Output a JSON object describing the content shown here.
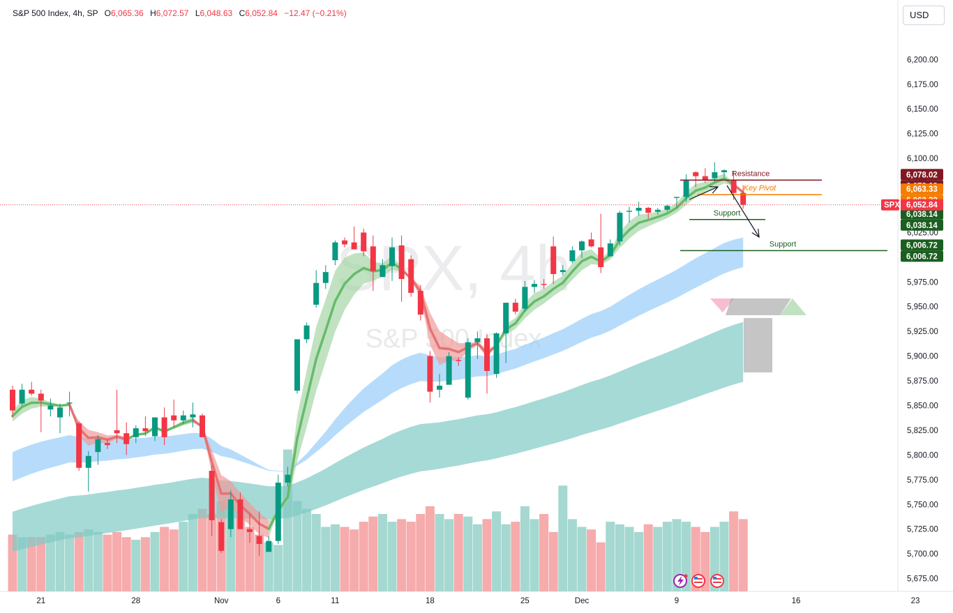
{
  "header": {
    "symbol": "S&P 500 Index, 4h, SP",
    "o_label": "O",
    "o_value": "6,065.36",
    "h_label": "H",
    "h_value": "6,072.57",
    "l_label": "L",
    "l_value": "6,048.63",
    "c_label": "C",
    "c_value": "6,052.84",
    "change": "−12.47 (−0.21%)"
  },
  "currency_button": "USD",
  "watermark": {
    "ticker": "SPX, 4h",
    "name": "S&P 500 Index"
  },
  "colors": {
    "up": "#089981",
    "down": "#f23645",
    "vol_up": "#9fd6cd",
    "vol_down": "#f6a6a8",
    "ema_fast": "#66bb6a",
    "band_fast_up": "#a5d6a7",
    "band_fast_down": "#ef9a9a",
    "band_mid": "#90caf9",
    "band_slow": "#80cbc4",
    "resistance": "#801922",
    "pivot": "#f57c00",
    "support": "#1b5e20"
  },
  "chart_data": {
    "type": "candlestick",
    "ylim": [
      5662,
      6232
    ],
    "y_ticks": [
      5675,
      5700,
      5725,
      5750,
      5775,
      5800,
      5825,
      5850,
      5875,
      5900,
      5925,
      5950,
      5975,
      6000,
      6025,
      6050,
      6075,
      6100,
      6125,
      6150,
      6175,
      6200
    ],
    "y_tick_labels": [
      "5,675.00",
      "5,700.00",
      "5,725.00",
      "5,750.00",
      "5,775.00",
      "5,800.00",
      "5,825.00",
      "5,850.00",
      "5,875.00",
      "5,900.00",
      "5,925.00",
      "5,950.00",
      "5,975.00",
      "6,000.00",
      "6,025.00",
      "6,050.00",
      "6,075.00",
      "6,100.00",
      "6,125.00",
      "6,150.00",
      "6,175.00",
      "6,200.00"
    ],
    "x_tick_labels": [
      "21",
      "28",
      "Nov",
      "6",
      "11",
      "18",
      "25",
      "Dec",
      "9",
      "16",
      "23"
    ],
    "x_tick_bar_index": [
      3,
      13,
      22,
      28,
      34,
      44,
      54,
      60,
      70,
      80,
      90
    ],
    "candles": [
      [
        5866,
        5870,
        5838,
        5845
      ],
      [
        5852,
        5872,
        5850,
        5866
      ],
      [
        5866,
        5874,
        5860,
        5862
      ],
      [
        5862,
        5866,
        5823,
        5855
      ],
      [
        5846,
        5857,
        5839,
        5850
      ],
      [
        5838,
        5852,
        5822,
        5848
      ],
      [
        5852,
        5864,
        5839,
        5853
      ],
      [
        5832,
        5834,
        5784,
        5787
      ],
      [
        5787,
        5804,
        5763,
        5799
      ],
      [
        5803,
        5820,
        5790,
        5816
      ],
      [
        5812,
        5816,
        5806,
        5810
      ],
      [
        5825,
        5866,
        5812,
        5822
      ],
      [
        5822,
        5833,
        5800,
        5811
      ],
      [
        5818,
        5830,
        5812,
        5827
      ],
      [
        5827,
        5839,
        5819,
        5824
      ],
      [
        5819,
        5835,
        5814,
        5838
      ],
      [
        5838,
        5848,
        5810,
        5818
      ],
      [
        5840,
        5856,
        5828,
        5835
      ],
      [
        5835,
        5845,
        5831,
        5840
      ],
      [
        5838,
        5853,
        5828,
        5841
      ],
      [
        5840,
        5842,
        5818,
        5818
      ],
      [
        5784,
        5790,
        5718,
        5734
      ],
      [
        5732,
        5735,
        5701,
        5703
      ],
      [
        5725,
        5764,
        5717,
        5755
      ],
      [
        5755,
        5762,
        5728,
        5725
      ],
      [
        5725,
        5740,
        5711,
        5722
      ],
      [
        5718,
        5743,
        5698,
        5710
      ],
      [
        5702,
        5718,
        5704,
        5713
      ],
      [
        5713,
        5780,
        5710,
        5772
      ],
      [
        5772,
        5788,
        5768,
        5780
      ],
      [
        5865,
        5917,
        5862,
        5917
      ],
      [
        5917,
        5934,
        5913,
        5931
      ],
      [
        5952,
        5987,
        5949,
        5974
      ],
      [
        5974,
        5992,
        5968,
        5985
      ],
      [
        5997,
        6017,
        5992,
        6015
      ],
      [
        6017,
        6020,
        6010,
        6013
      ],
      [
        6015,
        6031,
        6008,
        6008
      ],
      [
        6025,
        6029,
        6001,
        6006
      ],
      [
        6011,
        6022,
        5966,
        5986
      ],
      [
        5980,
        5998,
        5980,
        5992
      ],
      [
        5991,
        6020,
        5976,
        6010
      ],
      [
        6012,
        6022,
        5955,
        5978
      ],
      [
        5998,
        6002,
        5960,
        5964
      ],
      [
        5966,
        5972,
        5936,
        5942
      ],
      [
        5900,
        5905,
        5853,
        5864
      ],
      [
        5866,
        5882,
        5858,
        5870
      ],
      [
        5871,
        5904,
        5872,
        5900
      ],
      [
        5896,
        5899,
        5890,
        5895
      ],
      [
        5858,
        5918,
        5856,
        5914
      ],
      [
        5914,
        5925,
        5897,
        5918
      ],
      [
        5918,
        5922,
        5862,
        5885
      ],
      [
        5882,
        5924,
        5878,
        5923
      ],
      [
        5923,
        5951,
        5893,
        5954
      ],
      [
        5954,
        5958,
        5942,
        5945
      ],
      [
        5948,
        5976,
        5945,
        5970
      ],
      [
        5970,
        5977,
        5964,
        5973
      ],
      [
        5973,
        5978,
        5968,
        5972
      ],
      [
        6011,
        6021,
        5973,
        5983
      ],
      [
        5985,
        5992,
        5982,
        5987
      ],
      [
        5996,
        6011,
        5994,
        6007
      ],
      [
        6007,
        6017,
        5999,
        6016
      ],
      [
        6018,
        6025,
        6010,
        6011
      ],
      [
        6010,
        6044,
        5984,
        5990
      ],
      [
        6001,
        6018,
        6001,
        6014
      ],
      [
        6016,
        6047,
        6012,
        6045
      ],
      [
        6046,
        6051,
        6035,
        6047
      ],
      [
        6047,
        6056,
        6042,
        6050
      ],
      [
        6050,
        6051,
        6039,
        6045
      ],
      [
        6046,
        6050,
        6043,
        6048
      ],
      [
        6048,
        6053,
        6046,
        6052
      ],
      [
        6060,
        6061,
        6050,
        6061
      ],
      [
        6061,
        6084,
        6056,
        6078
      ],
      [
        6086,
        6087,
        6071,
        6082
      ],
      [
        6082,
        6090,
        6075,
        6078
      ],
      [
        6080,
        6096,
        6076,
        6086
      ],
      [
        6086,
        6089,
        6081,
        6088
      ],
      [
        6078,
        6087,
        6058,
        6065
      ],
      [
        6065,
        6073,
        6049,
        6053
      ]
    ],
    "volume_range": [
      0,
      1
    ],
    "volume": [
      0.22,
      0.21,
      0.21,
      0.21,
      0.22,
      0.23,
      0.22,
      0.23,
      0.24,
      0.23,
      0.22,
      0.23,
      0.21,
      0.2,
      0.21,
      0.23,
      0.25,
      0.24,
      0.27,
      0.3,
      0.32,
      0.3,
      0.35,
      0.33,
      0.31,
      0.25,
      0.22,
      0.19,
      0.18,
      0.55,
      0.35,
      0.32,
      0.3,
      0.25,
      0.26,
      0.25,
      0.24,
      0.27,
      0.29,
      0.3,
      0.27,
      0.28,
      0.27,
      0.3,
      0.33,
      0.3,
      0.28,
      0.3,
      0.29,
      0.26,
      0.28,
      0.31,
      0.26,
      0.27,
      0.33,
      0.28,
      0.3,
      0.23,
      0.41,
      0.28,
      0.25,
      0.24,
      0.19,
      0.27,
      0.26,
      0.25,
      0.23,
      0.26,
      0.25,
      0.27,
      0.28,
      0.27,
      0.25,
      0.23,
      0.25,
      0.27,
      0.31,
      0.28
    ],
    "last_price_label": "SPX",
    "last_price_value": "6,052.84",
    "levels": [
      {
        "name": "Resistance",
        "value": 6078.02,
        "label": "6,078.02"
      },
      {
        "name": "Key Pivot",
        "value": 6063.33,
        "label": "6,063.33"
      },
      {
        "name": "Support",
        "value": 6038.14,
        "label": "6,038.14"
      },
      {
        "name": "Support",
        "value": 6006.72,
        "label": "6,006.72"
      }
    ]
  }
}
